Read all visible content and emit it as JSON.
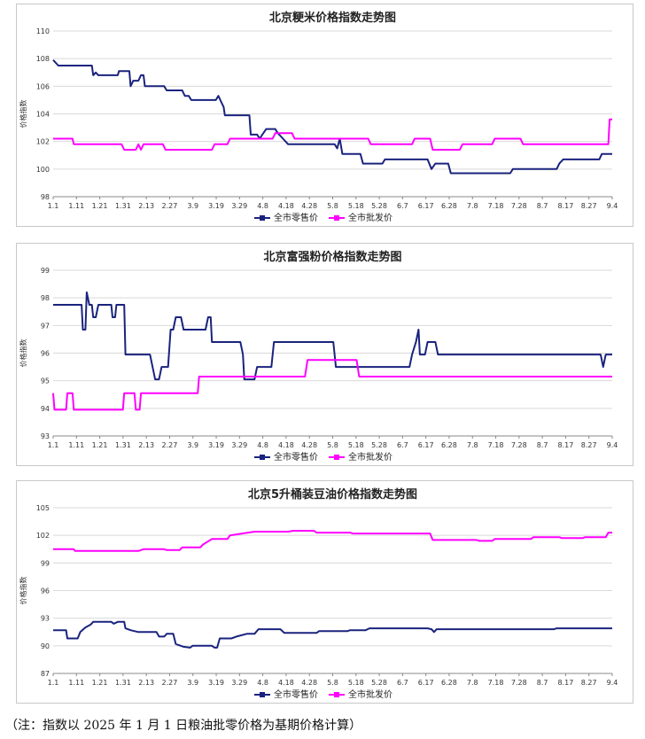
{
  "ticks": [
    "1.1",
    "1.11",
    "1.21",
    "1.31",
    "2.13",
    "2.27",
    "3.9",
    "3.19",
    "3.29",
    "4.8",
    "4.18",
    "4.28",
    "5.8",
    "5.18",
    "5.28",
    "6.7",
    "6.17",
    "6.28",
    "7.8",
    "7.18",
    "7.28",
    "8.7",
    "8.17",
    "8.27",
    "9.4"
  ],
  "colors": {
    "retail": "#1a237e",
    "wholesale": "#ff00ff"
  },
  "chart_data": [
    {
      "type": "line",
      "title": "北京粳米价格指数走势图",
      "ylabel": "价格指数",
      "yticks": [
        "98",
        "100",
        "102",
        "104",
        "106",
        "108",
        "110"
      ],
      "ylim": [
        98,
        110
      ],
      "grid": true,
      "legend_position": "bottom",
      "series": [
        {
          "name": "全市零售价",
          "color": "#1a237e",
          "points": [
            [
              0,
              107.9
            ],
            [
              0.4,
              107.5
            ],
            [
              3,
              107.5
            ],
            [
              3.1,
              106.8
            ],
            [
              3.3,
              107.0
            ],
            [
              3.5,
              106.8
            ],
            [
              5,
              106.8
            ],
            [
              5.1,
              107.1
            ],
            [
              5.9,
              107.1
            ],
            [
              6.0,
              106.0
            ],
            [
              6.2,
              106.4
            ],
            [
              6.6,
              106.4
            ],
            [
              6.8,
              106.8
            ],
            [
              7.0,
              106.8
            ],
            [
              7.1,
              106.0
            ],
            [
              8.6,
              106.0
            ],
            [
              8.8,
              105.7
            ],
            [
              10.0,
              105.7
            ],
            [
              10.2,
              105.3
            ],
            [
              10.5,
              105.3
            ],
            [
              10.7,
              105.0
            ],
            [
              12.6,
              105.0
            ],
            [
              12.8,
              105.3
            ],
            [
              13.0,
              104.9
            ],
            [
              13.2,
              104.5
            ],
            [
              13.3,
              103.9
            ],
            [
              15.2,
              103.9
            ],
            [
              15.3,
              102.5
            ],
            [
              15.8,
              102.5
            ],
            [
              16.0,
              102.2
            ],
            [
              16.2,
              102.5
            ],
            [
              16.5,
              102.9
            ],
            [
              17.2,
              102.9
            ],
            [
              17.4,
              102.6
            ],
            [
              17.8,
              102.2
            ],
            [
              18.2,
              101.8
            ],
            [
              21.8,
              101.8
            ],
            [
              22.0,
              101.5
            ],
            [
              22.2,
              102.2
            ],
            [
              22.4,
              101.1
            ],
            [
              23.8,
              101.1
            ],
            [
              24.0,
              100.4
            ],
            [
              25.5,
              100.4
            ],
            [
              25.7,
              100.7
            ],
            [
              29.0,
              100.7
            ],
            [
              29.3,
              100.0
            ],
            [
              29.6,
              100.4
            ],
            [
              30.6,
              100.4
            ],
            [
              30.8,
              99.7
            ],
            [
              35.4,
              99.7
            ],
            [
              35.6,
              100.0
            ],
            [
              39.0,
              100.0
            ],
            [
              39.2,
              100.4
            ],
            [
              39.5,
              100.7
            ],
            [
              42.3,
              100.7
            ],
            [
              42.5,
              101.1
            ],
            [
              43.3,
              101.1
            ]
          ]
        },
        {
          "name": "全市批发价",
          "color": "#ff00ff",
          "points": [
            [
              0,
              102.2
            ],
            [
              1.5,
              102.2
            ],
            [
              1.6,
              101.8
            ],
            [
              5.3,
              101.8
            ],
            [
              5.5,
              101.4
            ],
            [
              6.4,
              101.4
            ],
            [
              6.6,
              101.8
            ],
            [
              6.8,
              101.4
            ],
            [
              7.0,
              101.8
            ],
            [
              8.5,
              101.8
            ],
            [
              8.7,
              101.4
            ],
            [
              12.3,
              101.4
            ],
            [
              12.5,
              101.8
            ],
            [
              13.5,
              101.8
            ],
            [
              13.7,
              102.2
            ],
            [
              17.0,
              102.2
            ],
            [
              17.2,
              102.6
            ],
            [
              18.5,
              102.6
            ],
            [
              18.7,
              102.2
            ],
            [
              24.4,
              102.2
            ],
            [
              24.6,
              101.8
            ],
            [
              27.8,
              101.8
            ],
            [
              28.0,
              102.2
            ],
            [
              29.2,
              102.2
            ],
            [
              29.4,
              101.4
            ],
            [
              31.5,
              101.4
            ],
            [
              31.7,
              101.8
            ],
            [
              34.0,
              101.8
            ],
            [
              34.2,
              102.2
            ],
            [
              36.2,
              102.2
            ],
            [
              36.4,
              101.8
            ],
            [
              43.0,
              101.8
            ],
            [
              43.1,
              103.6
            ],
            [
              43.3,
              103.6
            ]
          ]
        }
      ]
    },
    {
      "type": "line",
      "title": "北京富强粉价格指数走势图",
      "ylabel": "价格指数",
      "yticks": [
        "93",
        "94",
        "95",
        "96",
        "97",
        "98",
        "99"
      ],
      "ylim": [
        93,
        99
      ],
      "grid": true,
      "legend_position": "bottom",
      "series": [
        {
          "name": "全市零售价",
          "color": "#1a237e",
          "points": [
            [
              0,
              97.75
            ],
            [
              2.2,
              97.75
            ],
            [
              2.3,
              96.85
            ],
            [
              2.5,
              96.85
            ],
            [
              2.6,
              98.2
            ],
            [
              2.8,
              97.75
            ],
            [
              3.0,
              97.75
            ],
            [
              3.1,
              97.3
            ],
            [
              3.3,
              97.3
            ],
            [
              3.5,
              97.75
            ],
            [
              4.5,
              97.75
            ],
            [
              4.6,
              97.3
            ],
            [
              4.8,
              97.3
            ],
            [
              4.9,
              97.75
            ],
            [
              5.5,
              97.75
            ],
            [
              5.6,
              95.95
            ],
            [
              7.5,
              95.95
            ],
            [
              7.7,
              95.5
            ],
            [
              7.9,
              95.05
            ],
            [
              8.2,
              95.05
            ],
            [
              8.4,
              95.5
            ],
            [
              8.9,
              95.5
            ],
            [
              9.1,
              96.85
            ],
            [
              9.3,
              96.85
            ],
            [
              9.5,
              97.3
            ],
            [
              9.9,
              97.3
            ],
            [
              10.1,
              96.85
            ],
            [
              11.8,
              96.85
            ],
            [
              12.0,
              97.3
            ],
            [
              12.2,
              97.3
            ],
            [
              12.3,
              96.4
            ],
            [
              14.5,
              96.4
            ],
            [
              14.7,
              95.95
            ],
            [
              14.8,
              95.05
            ],
            [
              15.6,
              95.05
            ],
            [
              15.8,
              95.5
            ],
            [
              16.9,
              95.5
            ],
            [
              17.1,
              96.4
            ],
            [
              21.7,
              96.4
            ],
            [
              21.9,
              95.5
            ],
            [
              27.6,
              95.5
            ],
            [
              27.8,
              95.95
            ],
            [
              28.1,
              96.4
            ],
            [
              28.3,
              96.85
            ],
            [
              28.4,
              95.95
            ],
            [
              28.8,
              95.95
            ],
            [
              29.0,
              96.4
            ],
            [
              29.6,
              96.4
            ],
            [
              29.8,
              95.95
            ],
            [
              42.4,
              95.95
            ],
            [
              42.6,
              95.5
            ],
            [
              42.8,
              95.95
            ],
            [
              43.3,
              95.95
            ]
          ]
        },
        {
          "name": "全市批发价",
          "color": "#ff00ff",
          "points": [
            [
              0,
              94.55
            ],
            [
              0.1,
              93.95
            ],
            [
              1.0,
              93.95
            ],
            [
              1.1,
              94.55
            ],
            [
              1.5,
              94.55
            ],
            [
              1.6,
              93.95
            ],
            [
              5.4,
              93.95
            ],
            [
              5.5,
              94.55
            ],
            [
              6.3,
              94.55
            ],
            [
              6.4,
              93.95
            ],
            [
              6.7,
              93.95
            ],
            [
              6.8,
              94.55
            ],
            [
              11.2,
              94.55
            ],
            [
              11.3,
              95.15
            ],
            [
              19.5,
              95.15
            ],
            [
              19.7,
              95.75
            ],
            [
              23.5,
              95.75
            ],
            [
              23.7,
              95.15
            ],
            [
              43.3,
              95.15
            ]
          ]
        }
      ]
    },
    {
      "type": "line",
      "title": "北京5升桶装豆油价格指数走势图",
      "ylabel": "价格指数",
      "yticks": [
        "87",
        "90",
        "93",
        "96",
        "99",
        "102",
        "105"
      ],
      "ylim": [
        87,
        105
      ],
      "grid": true,
      "legend_position": "bottom",
      "series": [
        {
          "name": "全市零售价",
          "color": "#1a237e",
          "points": [
            [
              0,
              91.7
            ],
            [
              1.0,
              91.7
            ],
            [
              1.1,
              90.8
            ],
            [
              1.9,
              90.8
            ],
            [
              2.1,
              91.5
            ],
            [
              2.5,
              92.0
            ],
            [
              2.9,
              92.3
            ],
            [
              3.1,
              92.6
            ],
            [
              4.5,
              92.6
            ],
            [
              4.7,
              92.4
            ],
            [
              5.0,
              92.6
            ],
            [
              5.5,
              92.6
            ],
            [
              5.6,
              91.9
            ],
            [
              6.0,
              91.7
            ],
            [
              6.6,
              91.5
            ],
            [
              8.0,
              91.5
            ],
            [
              8.2,
              91.0
            ],
            [
              8.6,
              91.0
            ],
            [
              8.8,
              91.3
            ],
            [
              9.3,
              91.3
            ],
            [
              9.5,
              90.2
            ],
            [
              10.1,
              89.9
            ],
            [
              10.6,
              89.8
            ],
            [
              10.8,
              90.0
            ],
            [
              12.3,
              90.0
            ],
            [
              12.5,
              89.8
            ],
            [
              12.7,
              89.8
            ],
            [
              12.9,
              90.8
            ],
            [
              13.8,
              90.8
            ],
            [
              14.2,
              91.0
            ],
            [
              15.0,
              91.3
            ],
            [
              15.6,
              91.3
            ],
            [
              15.9,
              91.8
            ],
            [
              17.6,
              91.8
            ],
            [
              17.9,
              91.4
            ],
            [
              20.4,
              91.4
            ],
            [
              20.6,
              91.6
            ],
            [
              22.8,
              91.6
            ],
            [
              23.0,
              91.7
            ],
            [
              24.2,
              91.7
            ],
            [
              24.5,
              91.9
            ],
            [
              29.0,
              91.9
            ],
            [
              29.3,
              91.8
            ],
            [
              29.5,
              91.5
            ],
            [
              29.7,
              91.8
            ],
            [
              38.8,
              91.8
            ],
            [
              39.0,
              91.9
            ],
            [
              43.3,
              91.9
            ]
          ]
        },
        {
          "name": "全市批发价",
          "color": "#ff00ff",
          "points": [
            [
              0,
              100.5
            ],
            [
              1.6,
              100.5
            ],
            [
              1.7,
              100.3
            ],
            [
              6.6,
              100.3
            ],
            [
              6.8,
              100.4
            ],
            [
              7.0,
              100.5
            ],
            [
              8.6,
              100.5
            ],
            [
              8.8,
              100.4
            ],
            [
              9.8,
              100.4
            ],
            [
              10.0,
              100.7
            ],
            [
              11.4,
              100.7
            ],
            [
              11.6,
              101.0
            ],
            [
              12.3,
              101.6
            ],
            [
              13.5,
              101.6
            ],
            [
              13.7,
              102.0
            ],
            [
              15.6,
              102.4
            ],
            [
              18.2,
              102.4
            ],
            [
              18.6,
              102.5
            ],
            [
              20.2,
              102.5
            ],
            [
              20.4,
              102.3
            ],
            [
              23.0,
              102.3
            ],
            [
              23.2,
              102.2
            ],
            [
              29.2,
              102.2
            ],
            [
              29.4,
              101.5
            ],
            [
              32.8,
              101.5
            ],
            [
              33.0,
              101.4
            ],
            [
              34.0,
              101.4
            ],
            [
              34.2,
              101.6
            ],
            [
              37.0,
              101.6
            ],
            [
              37.2,
              101.8
            ],
            [
              39.2,
              101.8
            ],
            [
              39.4,
              101.7
            ],
            [
              41.0,
              101.7
            ],
            [
              41.2,
              101.8
            ],
            [
              42.8,
              101.8
            ],
            [
              43.0,
              102.3
            ],
            [
              43.3,
              102.3
            ]
          ]
        }
      ]
    }
  ],
  "footnote": "（注：指数以 2025 年 1 月 1 日粮油批零价格为基期价格计算）"
}
